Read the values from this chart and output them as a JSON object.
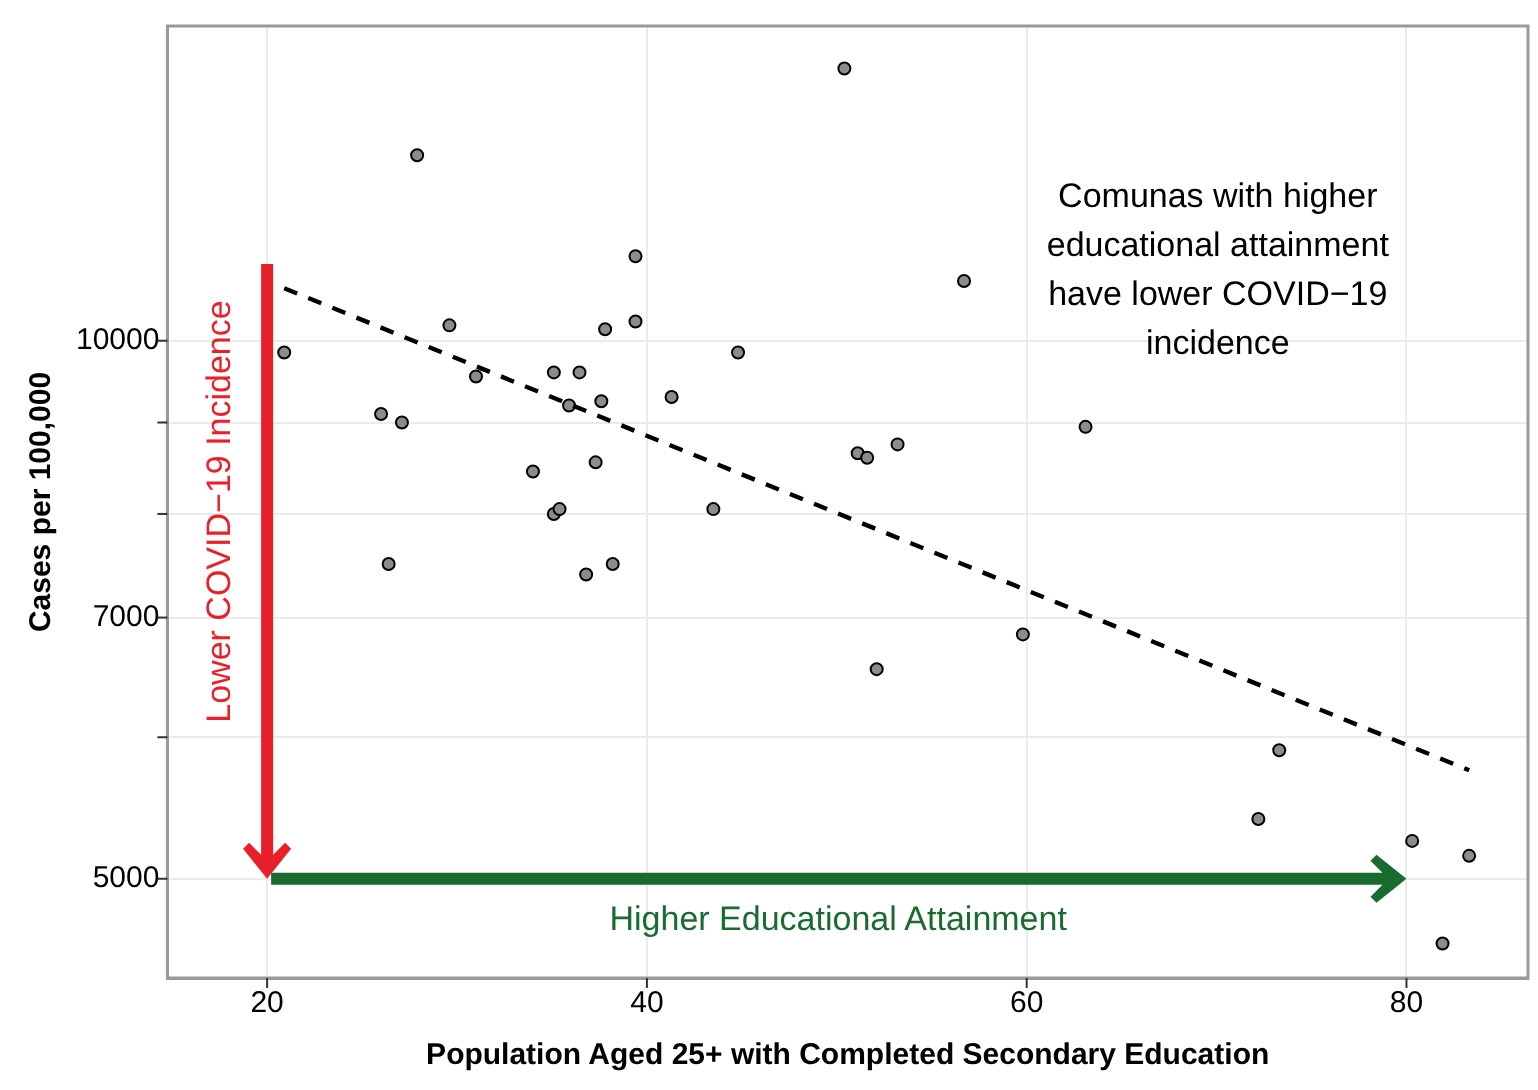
{
  "chart_data": {
    "type": "scatter",
    "xlabel": "Population Aged 25+ with Completed Secondary Education",
    "ylabel": "Cases per 100,000",
    "log": "y",
    "xlim": [
      14.75,
      86.4
    ],
    "ylim": [
      4400,
      15000
    ],
    "xticks": [
      20,
      40,
      60,
      80
    ],
    "yticks": [
      5000,
      {
        "value": 6000,
        "label": null
      },
      7000,
      {
        "value": 8000,
        "label": null
      },
      {
        "value": 9000,
        "label": null
      },
      10000
    ],
    "grid": true,
    "legend": false,
    "marker": "circle",
    "annotations": [
      "Comunas with higher educational attainment have lower COVID−19 incidence",
      "Lower COVID−19 Incidence",
      "Higher Educational Attainment"
    ],
    "series": [
      {
        "color": "#8c8c8c",
        "x": [
          27.9,
          39.4,
          29.6,
          37.8,
          39.4,
          20.9,
          44.8,
          31.0,
          35.1,
          36.45,
          35.9,
          37.6,
          41.3,
          26.0,
          27.1,
          34.0,
          37.3,
          35.1,
          35.4,
          43.5,
          26.4,
          36.8,
          38.2,
          50.4,
          56.7,
          51.1,
          51.6,
          53.2,
          63.1,
          52.1,
          59.8,
          73.3,
          72.2,
          80.3,
          83.3,
          81.9
        ],
        "values": [
          12700,
          11150,
          10200,
          10150,
          10250,
          9850,
          9850,
          9550,
          9600,
          9600,
          9200,
          9250,
          9300,
          9100,
          9000,
          8450,
          8550,
          8000,
          8050,
          8050,
          7500,
          7400,
          7500,
          14200,
          10800,
          8650,
          8600,
          8750,
          8950,
          6550,
          6850,
          5900,
          5400,
          5250,
          5150,
          4600
        ]
      },
      {
        "type": "line",
        "color": "#000000",
        "line_style": "dashed",
        "marker": "none",
        "x": [
          20.9,
          83.3
        ],
        "values": [
          10700,
          5750
        ]
      }
    ]
  }
}
